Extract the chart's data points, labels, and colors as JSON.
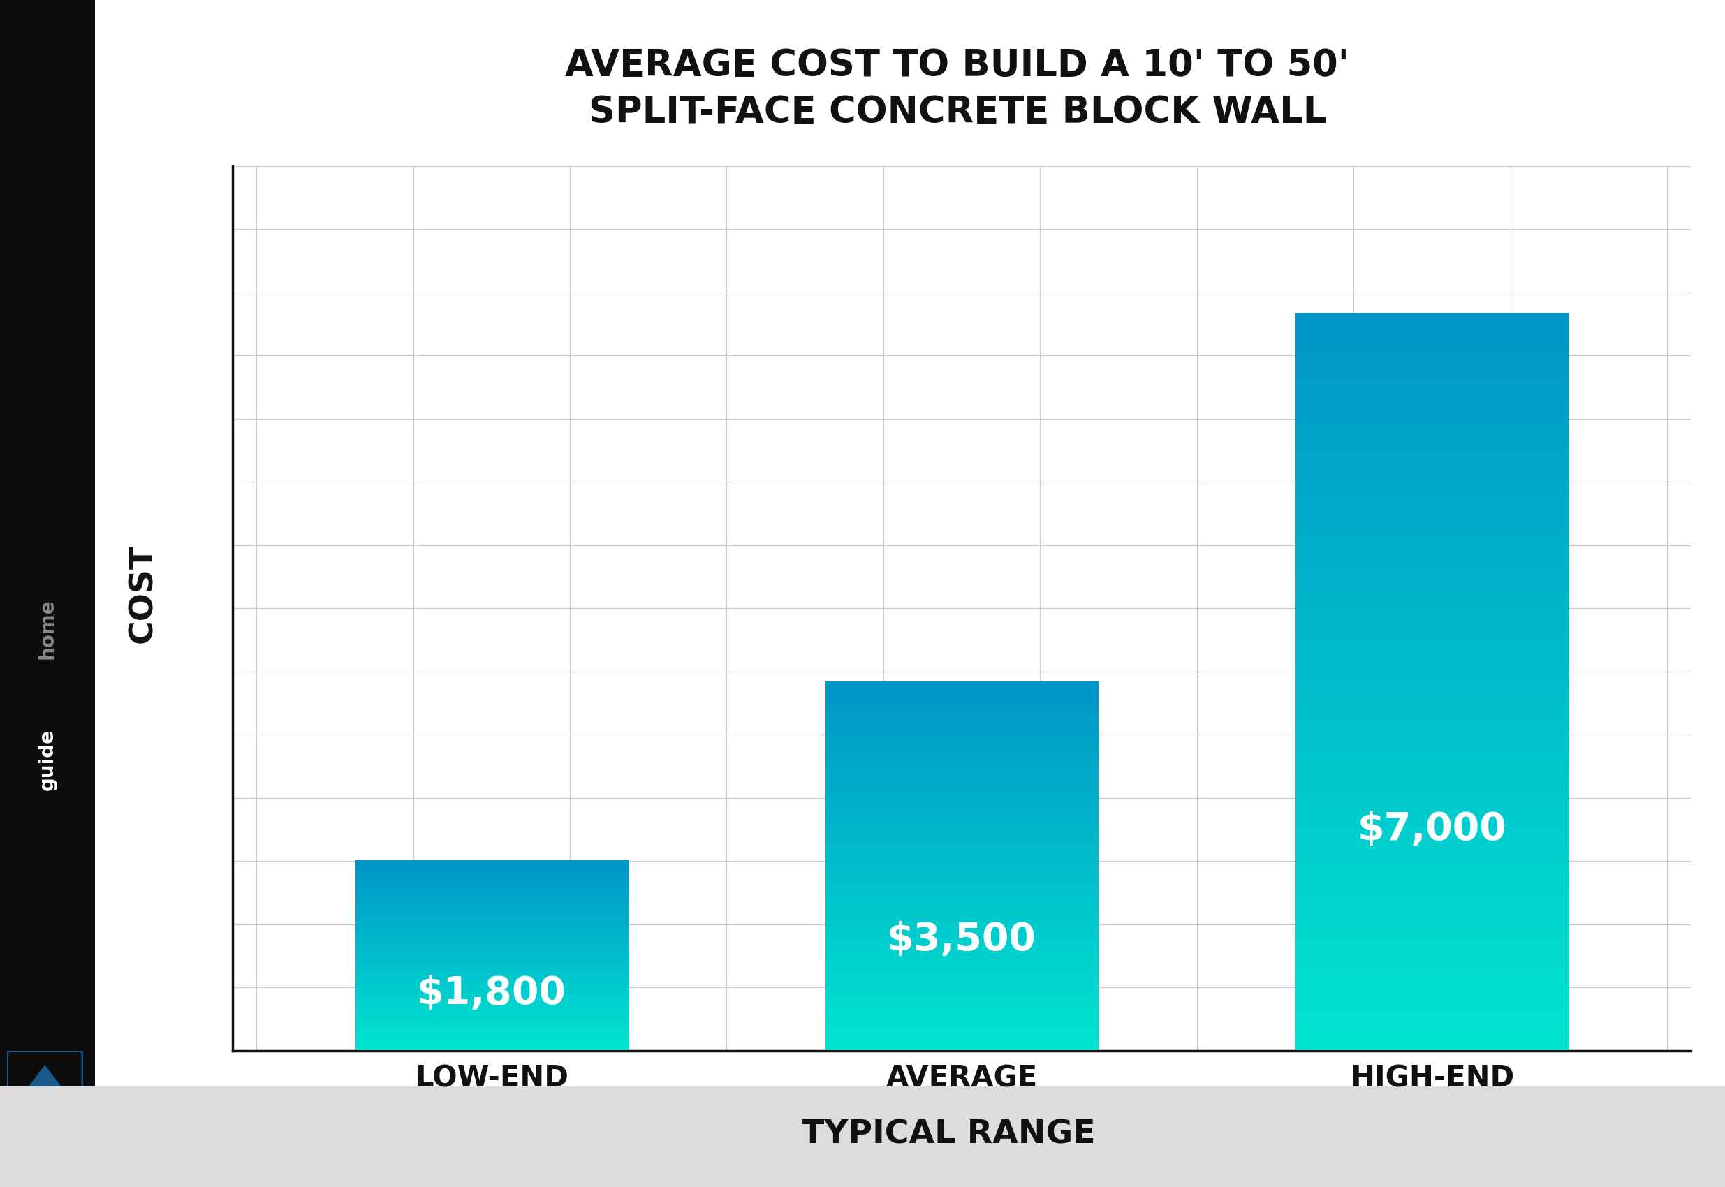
{
  "title_line1": "AVERAGE COST TO BUILD A 10' TO 50'",
  "title_line2": "SPLIT-FACE CONCRETE BLOCK WALL",
  "categories": [
    "LOW-END",
    "AVERAGE",
    "HIGH-END"
  ],
  "values": [
    1800,
    3500,
    7000
  ],
  "labels": [
    "$1,800",
    "$3,500",
    "$7,000"
  ],
  "ylabel": "COST",
  "xlabel": "TYPICAL RANGE",
  "bar_top_color": "#0096C7",
  "bar_bottom_color": "#00E5D0",
  "background_color": "#FFFFFF",
  "left_panel_color": "#0D0D0D",
  "bottom_panel_color": "#DCDCDC",
  "grid_color": "#CCCCCC",
  "label_color": "#FFFFFF",
  "title_color": "#111111",
  "axis_label_color": "#111111",
  "ylim": [
    0,
    8400
  ],
  "grid_step": 600,
  "title_fontsize": 38,
  "axis_label_fontsize": 32,
  "tick_label_fontsize": 30,
  "bar_label_fontsize": 40,
  "homeguide_gray": "#888888",
  "homeguide_white": "#FFFFFF",
  "logo_blue": "#1A5A8A",
  "logo_cyan": "#2ABBE8"
}
